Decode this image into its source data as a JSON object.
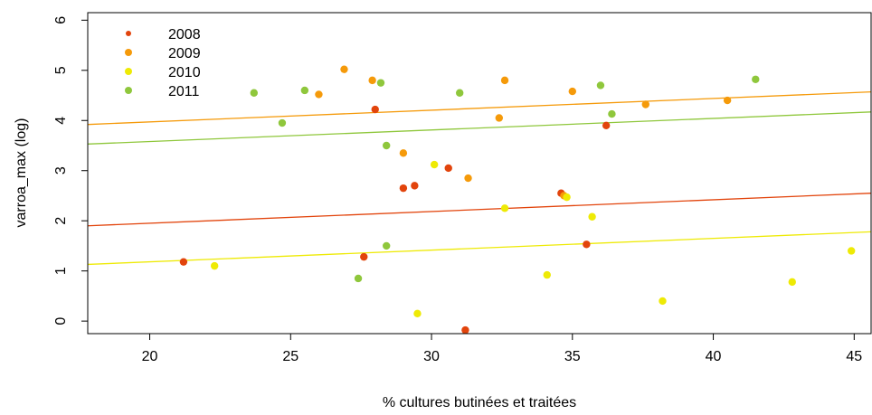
{
  "chart_data": {
    "type": "scatter",
    "xlabel": "% cultures butinées et traitées",
    "ylabel": "varroa_max (log)",
    "xlim": [
      17.8,
      45.6
    ],
    "ylim": [
      -0.25,
      6.15
    ],
    "x_ticks": [
      20,
      25,
      30,
      35,
      40,
      45
    ],
    "y_ticks": [
      0,
      1,
      2,
      3,
      4,
      5,
      6
    ],
    "grid": false,
    "legend_position": "top-left",
    "series": [
      {
        "name": "2008",
        "color": "#e2440c",
        "points": [
          {
            "x": 21.2,
            "y": 1.18
          },
          {
            "x": 27.6,
            "y": 1.28
          },
          {
            "x": 28.0,
            "y": 4.22
          },
          {
            "x": 29.0,
            "y": 2.65
          },
          {
            "x": 29.4,
            "y": 2.7
          },
          {
            "x": 30.6,
            "y": 3.05
          },
          {
            "x": 31.2,
            "y": -0.18
          },
          {
            "x": 34.6,
            "y": 2.55
          },
          {
            "x": 35.5,
            "y": 1.53
          },
          {
            "x": 36.2,
            "y": 3.9
          }
        ],
        "trend": {
          "x": [
            17.8,
            45.6
          ],
          "y": [
            1.9,
            2.55
          ]
        }
      },
      {
        "name": "2009",
        "color": "#f59a0a",
        "points": [
          {
            "x": 26.0,
            "y": 4.52
          },
          {
            "x": 26.9,
            "y": 5.02
          },
          {
            "x": 27.9,
            "y": 4.8
          },
          {
            "x": 29.0,
            "y": 3.35
          },
          {
            "x": 31.3,
            "y": 2.85
          },
          {
            "x": 32.4,
            "y": 4.05
          },
          {
            "x": 32.6,
            "y": 4.8
          },
          {
            "x": 34.7,
            "y": 2.5
          },
          {
            "x": 35.0,
            "y": 4.58
          },
          {
            "x": 37.6,
            "y": 4.32
          },
          {
            "x": 40.5,
            "y": 4.4
          }
        ],
        "trend": {
          "x": [
            17.8,
            45.6
          ],
          "y": [
            3.92,
            4.57
          ]
        }
      },
      {
        "name": "2010",
        "color": "#eeea05",
        "points": [
          {
            "x": 22.3,
            "y": 1.1
          },
          {
            "x": 29.5,
            "y": 0.15
          },
          {
            "x": 30.1,
            "y": 3.12
          },
          {
            "x": 32.6,
            "y": 2.25
          },
          {
            "x": 34.1,
            "y": 0.92
          },
          {
            "x": 34.8,
            "y": 2.47
          },
          {
            "x": 35.7,
            "y": 2.08
          },
          {
            "x": 38.2,
            "y": 0.4
          },
          {
            "x": 42.8,
            "y": 0.78
          },
          {
            "x": 44.9,
            "y": 1.4
          }
        ],
        "trend": {
          "x": [
            17.8,
            45.6
          ],
          "y": [
            1.13,
            1.78
          ]
        }
      },
      {
        "name": "2011",
        "color": "#8fc73c",
        "points": [
          {
            "x": 23.7,
            "y": 4.55
          },
          {
            "x": 24.7,
            "y": 3.95
          },
          {
            "x": 25.5,
            "y": 4.6
          },
          {
            "x": 27.4,
            "y": 0.85
          },
          {
            "x": 28.2,
            "y": 4.75
          },
          {
            "x": 28.4,
            "y": 3.5
          },
          {
            "x": 28.4,
            "y": 1.5
          },
          {
            "x": 31.0,
            "y": 4.55
          },
          {
            "x": 36.0,
            "y": 4.7
          },
          {
            "x": 36.4,
            "y": 4.13
          },
          {
            "x": 41.5,
            "y": 4.82
          }
        ],
        "trend": {
          "x": [
            17.8,
            45.6
          ],
          "y": [
            3.53,
            4.17
          ]
        }
      }
    ]
  }
}
